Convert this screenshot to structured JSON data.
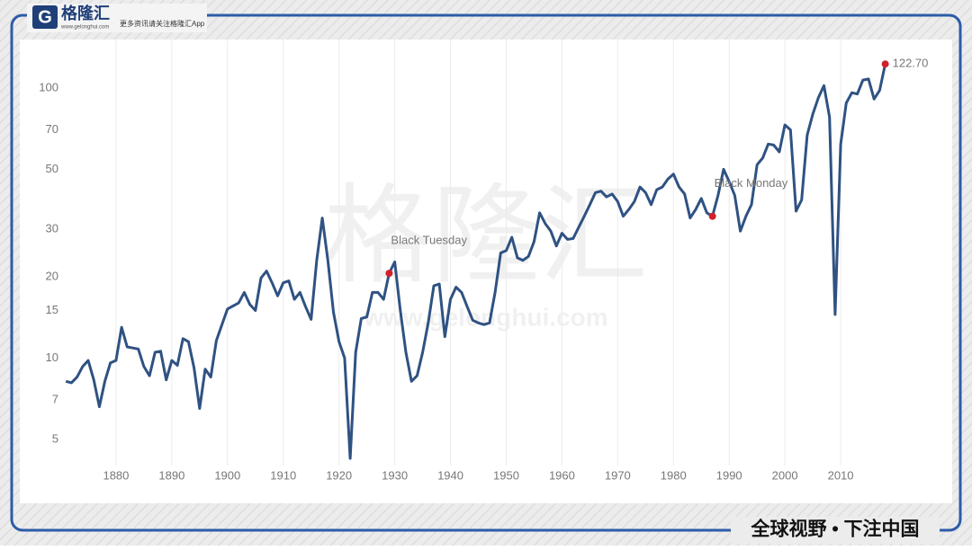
{
  "branding": {
    "logo": "格隆汇",
    "logo_url": "www.gelonghui.com",
    "tagline": "更多资讯请关注格隆汇App",
    "watermark": "格隆汇",
    "watermark_url": "www.gelonghui.com",
    "slogan": "全球视野 • 下注中国"
  },
  "chart_data": {
    "type": "line",
    "log_y": true,
    "grid": "x",
    "xlim": [
      1870,
      2020
    ],
    "xticks": [
      1880,
      1890,
      1900,
      1910,
      1920,
      1930,
      1940,
      1950,
      1960,
      1970,
      1980,
      1990,
      2000,
      2010
    ],
    "ylim": [
      4,
      140
    ],
    "yticks": [
      5,
      7,
      10,
      15,
      20,
      30,
      50,
      70,
      100
    ],
    "x": [
      1871,
      1872,
      1873,
      1874,
      1875,
      1876,
      1877,
      1878,
      1879,
      1880,
      1881,
      1882,
      1883,
      1884,
      1885,
      1886,
      1887,
      1888,
      1889,
      1890,
      1891,
      1892,
      1893,
      1894,
      1895,
      1896,
      1897,
      1898,
      1899,
      1900,
      1901,
      1902,
      1903,
      1904,
      1905,
      1906,
      1907,
      1908,
      1909,
      1910,
      1911,
      1912,
      1913,
      1914,
      1915,
      1916,
      1917,
      1918,
      1919,
      1920,
      1921,
      1922,
      1923,
      1924,
      1925,
      1926,
      1927,
      1928,
      1929,
      1930,
      1931,
      1932,
      1933,
      1934,
      1935,
      1936,
      1937,
      1938,
      1939,
      1940,
      1941,
      1942,
      1943,
      1944,
      1945,
      1946,
      1947,
      1948,
      1949,
      1950,
      1951,
      1952,
      1953,
      1954,
      1955,
      1956,
      1957,
      1958,
      1959,
      1960,
      1961,
      1962,
      1963,
      1964,
      1965,
      1966,
      1967,
      1968,
      1969,
      1970,
      1971,
      1972,
      1973,
      1974,
      1975,
      1976,
      1977,
      1978,
      1979,
      1980,
      1981,
      1982,
      1983,
      1984,
      1985,
      1986,
      1987,
      1988,
      1989,
      1990,
      1991,
      1992,
      1993,
      1994,
      1995,
      1996,
      1997,
      1998,
      1999,
      2000,
      2001,
      2002,
      2003,
      2004,
      2005,
      2006,
      2007,
      2008,
      2009,
      2010,
      2011,
      2012,
      2013,
      2014,
      2015,
      2016,
      2017,
      2018
    ],
    "series": [
      {
        "color": "#2f5282",
        "values": [
          8.2,
          8.1,
          8.5,
          9.3,
          9.8,
          8.3,
          6.6,
          8.2,
          9.6,
          9.8,
          13,
          11,
          10.9,
          10.8,
          9.3,
          8.6,
          10.5,
          10.6,
          8.3,
          9.8,
          9.4,
          11.8,
          11.5,
          9.2,
          6.5,
          9.1,
          8.5,
          11.6,
          13.3,
          15.2,
          15.6,
          16,
          17.5,
          15.8,
          15,
          19.8,
          21,
          19,
          17,
          19,
          19.3,
          16.5,
          17.5,
          15.5,
          13.9,
          23,
          33,
          23,
          14.8,
          11.5,
          10,
          4.25,
          10.5,
          14,
          14.2,
          17.5,
          17.5,
          16.5,
          20.6,
          22.7,
          15,
          10.5,
          8.2,
          8.6,
          10.5,
          13.5,
          18.5,
          18.8,
          12,
          16.5,
          18.3,
          17.5,
          15.5,
          13.8,
          13.5,
          13.3,
          13.5,
          17.5,
          24.5,
          25,
          28,
          23.5,
          23,
          23.8,
          27,
          34.5,
          31.5,
          29.5,
          26,
          29,
          27.5,
          27.7,
          30.5,
          33.5,
          37,
          41,
          41.5,
          39.5,
          40.5,
          38,
          33.5,
          35.5,
          38,
          43,
          41,
          37,
          42,
          43,
          46,
          48,
          43,
          40.5,
          33,
          35.5,
          39,
          34.5,
          33.5,
          40,
          50,
          45,
          40,
          29.5,
          33.5,
          37,
          52,
          55,
          62,
          61.5,
          58,
          73,
          70,
          35,
          38.5,
          67,
          80,
          92,
          102,
          78,
          14.5,
          62,
          88,
          96,
          95,
          107,
          108,
          91,
          98,
          122.7
        ],
        "value_labels": {
          "147": "122.70"
        }
      }
    ],
    "annotations": [
      {
        "text": "Black Tuesday",
        "index": 58
      },
      {
        "text": "Black Monday",
        "index": 116
      }
    ],
    "highlight_color": "#d0202e"
  }
}
